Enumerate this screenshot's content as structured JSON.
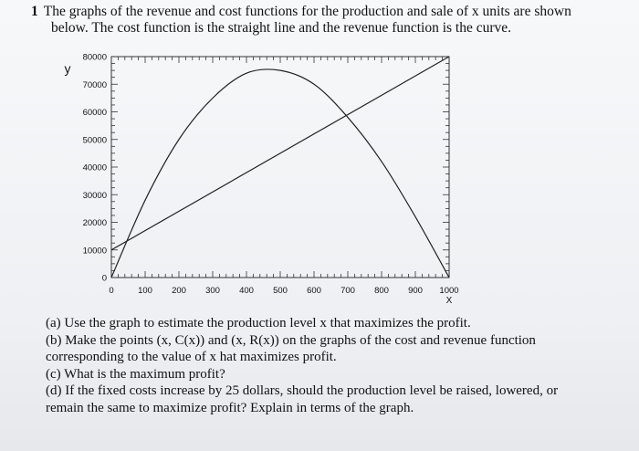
{
  "problem": {
    "number": "1",
    "statement_line1": "The graphs of the revenue and cost functions for the production and sale of x units are shown",
    "statement_line2": "below. The cost function is the straight line and the revenue function is the curve."
  },
  "questions": [
    {
      "text": "(a) Use the graph to estimate the production level x that maximizes the profit."
    },
    {
      "text": "(b) Make the points (x, C(x)) and (x, R(x)) on the graphs of the cost and revenue function"
    },
    {
      "text": "corresponding to the value of x hat maximizes profit."
    },
    {
      "text": "(c) What is the maximum profit?"
    },
    {
      "text": "(d) If the fixed costs increase by 25 dollars, should the production level be raised, lowered, or"
    },
    {
      "text": "remain the same to maximize profit? Explain in terms of the graph."
    }
  ],
  "chart_data": {
    "type": "line",
    "title": "",
    "xlabel": "X",
    "ylabel": "y",
    "xlim": [
      0,
      1000
    ],
    "ylim": [
      0,
      80000
    ],
    "x_ticks": [
      0,
      100,
      200,
      300,
      400,
      500,
      600,
      700,
      800,
      900,
      1000
    ],
    "y_ticks": [
      0,
      10000,
      20000,
      30000,
      40000,
      50000,
      60000,
      70000,
      80000
    ],
    "x_tick_labels": [
      "0",
      "100",
      "200",
      "300",
      "400",
      "500",
      "600",
      "700",
      "800",
      "900",
      "1000"
    ],
    "y_tick_labels": [
      "0",
      "10000",
      "20000",
      "30000",
      "40000",
      "50000",
      "60000",
      "70000",
      "80000"
    ],
    "grid": false,
    "series": [
      {
        "kind": "cost",
        "x": [
          0,
          1000
        ],
        "y": [
          10000,
          80000
        ],
        "color": "#222222"
      },
      {
        "kind": "revenue",
        "x": [
          0,
          100,
          200,
          300,
          400,
          500,
          600,
          700,
          800,
          900,
          1000
        ],
        "y": [
          0,
          28000,
          50000,
          65000,
          74000,
          75000,
          70000,
          58000,
          42000,
          22000,
          0
        ],
        "color": "#222222"
      }
    ]
  }
}
